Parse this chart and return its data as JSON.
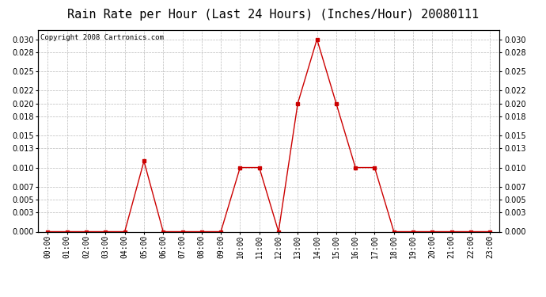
{
  "title": "Rain Rate per Hour (Last 24 Hours) (Inches/Hour) 20080111",
  "copyright": "Copyright 2008 Cartronics.com",
  "hours": [
    "00:00",
    "01:00",
    "02:00",
    "03:00",
    "04:00",
    "05:00",
    "06:00",
    "07:00",
    "08:00",
    "09:00",
    "10:00",
    "11:00",
    "12:00",
    "13:00",
    "14:00",
    "15:00",
    "16:00",
    "17:00",
    "18:00",
    "19:00",
    "20:00",
    "21:00",
    "22:00",
    "23:00"
  ],
  "values": [
    0.0,
    0.0,
    0.0,
    0.0,
    0.0,
    0.011,
    0.0,
    0.0,
    0.0,
    0.0,
    0.01,
    0.01,
    0.0,
    0.02,
    0.03,
    0.02,
    0.01,
    0.01,
    0.0,
    0.0,
    0.0,
    0.0,
    0.0,
    0.0
  ],
  "line_color": "#cc0000",
  "marker": "s",
  "marker_size": 2.5,
  "bg_color": "#ffffff",
  "plot_bg_color": "#ffffff",
  "grid_color": "#bbbbbb",
  "ylim": [
    0.0,
    0.0315
  ],
  "yticks": [
    0.0,
    0.003,
    0.005,
    0.007,
    0.01,
    0.013,
    0.015,
    0.018,
    0.02,
    0.022,
    0.025,
    0.028,
    0.03
  ],
  "title_fontsize": 11,
  "copyright_fontsize": 6.5,
  "tick_fontsize": 7,
  "border_color": "#000000"
}
